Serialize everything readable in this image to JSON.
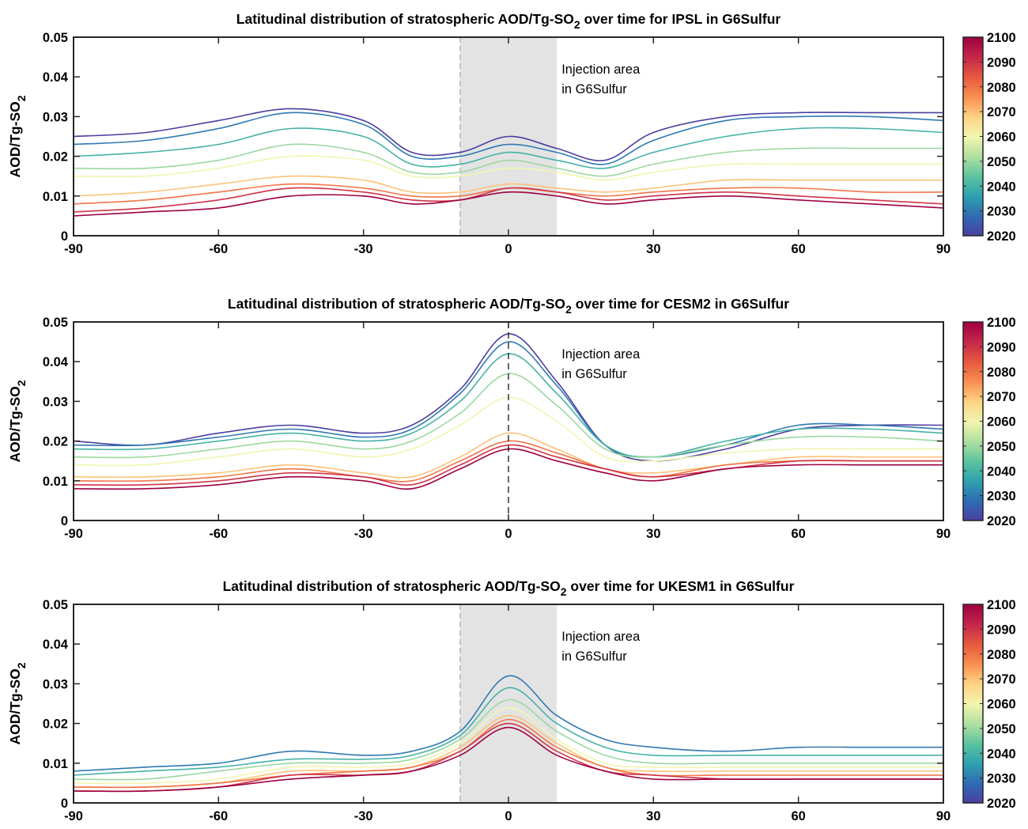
{
  "chart_data": [
    {
      "type": "line",
      "model": "IPSL",
      "title": "Latitudinal distribution of stratospheric AOD/Tg-SO",
      "title_sub": "2",
      "title_tail": " over time for IPSL in G6Sulfur",
      "ylabel": "AOD/Tg-SO",
      "ylabel_sub": "2",
      "annotation": [
        "Injection area",
        "in G6Sulfur"
      ],
      "injection_band": [
        -10,
        10
      ],
      "dashed_center": false,
      "xlim": [
        -90,
        90
      ],
      "ylim": [
        0,
        0.05
      ],
      "xticks": [
        "-90",
        "-60",
        "-30",
        "0",
        "30",
        "60",
        "90"
      ],
      "yticks": [
        "0",
        "0.01",
        "0.02",
        "0.03",
        "0.04",
        "0.05"
      ],
      "x_lat": [
        -90,
        -75,
        -60,
        -45,
        -30,
        -20,
        -10,
        0,
        10,
        20,
        30,
        45,
        60,
        75,
        90
      ],
      "series": [
        {
          "year": 2020,
          "values": [
            0.025,
            0.026,
            0.029,
            0.032,
            0.029,
            0.021,
            0.021,
            0.025,
            0.022,
            0.019,
            0.026,
            0.03,
            0.031,
            0.031,
            0.031
          ]
        },
        {
          "year": 2030,
          "values": [
            0.023,
            0.024,
            0.027,
            0.031,
            0.028,
            0.02,
            0.02,
            0.023,
            0.021,
            0.018,
            0.024,
            0.029,
            0.03,
            0.03,
            0.029
          ]
        },
        {
          "year": 2040,
          "values": [
            0.02,
            0.021,
            0.023,
            0.027,
            0.025,
            0.018,
            0.018,
            0.021,
            0.019,
            0.017,
            0.021,
            0.025,
            0.027,
            0.027,
            0.026
          ]
        },
        {
          "year": 2050,
          "values": [
            0.017,
            0.017,
            0.019,
            0.023,
            0.021,
            0.016,
            0.016,
            0.019,
            0.017,
            0.015,
            0.018,
            0.021,
            0.022,
            0.022,
            0.022
          ]
        },
        {
          "year": 2060,
          "values": [
            0.015,
            0.015,
            0.017,
            0.02,
            0.019,
            0.015,
            0.015,
            0.017,
            0.016,
            0.014,
            0.016,
            0.018,
            0.018,
            0.018,
            0.018
          ]
        },
        {
          "year": 2070,
          "values": [
            0.01,
            0.011,
            0.013,
            0.015,
            0.014,
            0.011,
            0.011,
            0.013,
            0.012,
            0.011,
            0.012,
            0.014,
            0.014,
            0.014,
            0.014
          ]
        },
        {
          "year": 2080,
          "values": [
            0.008,
            0.009,
            0.011,
            0.013,
            0.012,
            0.01,
            0.01,
            0.012,
            0.011,
            0.01,
            0.011,
            0.012,
            0.012,
            0.011,
            0.011
          ]
        },
        {
          "year": 2090,
          "values": [
            0.006,
            0.007,
            0.009,
            0.012,
            0.011,
            0.009,
            0.009,
            0.012,
            0.011,
            0.009,
            0.01,
            0.011,
            0.01,
            0.009,
            0.008
          ]
        },
        {
          "year": 2100,
          "values": [
            0.005,
            0.006,
            0.007,
            0.01,
            0.01,
            0.008,
            0.009,
            0.011,
            0.01,
            0.008,
            0.009,
            0.01,
            0.009,
            0.008,
            0.007
          ]
        }
      ]
    },
    {
      "type": "line",
      "model": "CESM2",
      "title": "Latitudinal distribution of stratospheric AOD/Tg-SO",
      "title_sub": "2",
      "title_tail": " over time for CESM2 in G6Sulfur",
      "ylabel": "AOD/Tg-SO",
      "ylabel_sub": "2",
      "annotation": [
        "Injection area",
        "in G6Sulfur"
      ],
      "injection_band": null,
      "dashed_center": true,
      "xlim": [
        -90,
        90
      ],
      "ylim": [
        0,
        0.05
      ],
      "xticks": [
        "-90",
        "-60",
        "-30",
        "0",
        "30",
        "60",
        "90"
      ],
      "yticks": [
        "0",
        "0.01",
        "0.02",
        "0.03",
        "0.04",
        "0.05"
      ],
      "x_lat": [
        -90,
        -75,
        -60,
        -45,
        -30,
        -20,
        -10,
        0,
        10,
        20,
        30,
        45,
        60,
        75,
        90
      ],
      "series": [
        {
          "year": 2020,
          "values": [
            0.02,
            0.019,
            0.022,
            0.024,
            0.022,
            0.024,
            0.033,
            0.047,
            0.035,
            0.019,
            0.015,
            0.018,
            0.023,
            0.024,
            0.024
          ]
        },
        {
          "year": 2030,
          "values": [
            0.019,
            0.019,
            0.021,
            0.023,
            0.021,
            0.023,
            0.032,
            0.045,
            0.034,
            0.019,
            0.016,
            0.019,
            0.024,
            0.024,
            0.023
          ]
        },
        {
          "year": 2040,
          "values": [
            0.018,
            0.018,
            0.02,
            0.022,
            0.02,
            0.022,
            0.03,
            0.042,
            0.032,
            0.019,
            0.016,
            0.02,
            0.023,
            0.023,
            0.022
          ]
        },
        {
          "year": 2050,
          "values": [
            0.016,
            0.016,
            0.018,
            0.02,
            0.018,
            0.02,
            0.027,
            0.037,
            0.029,
            0.018,
            0.016,
            0.019,
            0.021,
            0.021,
            0.02
          ]
        },
        {
          "year": 2060,
          "values": [
            0.014,
            0.014,
            0.016,
            0.018,
            0.016,
            0.018,
            0.024,
            0.031,
            0.025,
            0.016,
            0.015,
            0.017,
            0.018,
            0.018,
            0.018
          ]
        },
        {
          "year": 2070,
          "values": [
            0.011,
            0.011,
            0.012,
            0.014,
            0.012,
            0.011,
            0.016,
            0.022,
            0.018,
            0.013,
            0.012,
            0.014,
            0.016,
            0.016,
            0.016
          ]
        },
        {
          "year": 2080,
          "values": [
            0.01,
            0.01,
            0.011,
            0.013,
            0.011,
            0.01,
            0.015,
            0.02,
            0.017,
            0.013,
            0.011,
            0.014,
            0.015,
            0.015,
            0.015
          ]
        },
        {
          "year": 2090,
          "values": [
            0.009,
            0.009,
            0.01,
            0.012,
            0.011,
            0.009,
            0.014,
            0.019,
            0.016,
            0.013,
            0.011,
            0.013,
            0.015,
            0.015,
            0.015
          ]
        },
        {
          "year": 2100,
          "values": [
            0.008,
            0.008,
            0.009,
            0.011,
            0.01,
            0.008,
            0.013,
            0.018,
            0.015,
            0.012,
            0.01,
            0.013,
            0.014,
            0.014,
            0.014
          ]
        }
      ]
    },
    {
      "type": "line",
      "model": "UKESM1",
      "title": "Latitudinal distribution of stratospheric AOD/Tg-SO",
      "title_sub": "2",
      "title_tail": " over time for UKESM1 in G6Sulfur",
      "ylabel": "AOD/Tg-SO",
      "ylabel_sub": "2",
      "annotation": [
        "Injection area",
        "in G6Sulfur"
      ],
      "injection_band": [
        -10,
        10
      ],
      "dashed_center": false,
      "xlim": [
        -90,
        90
      ],
      "ylim": [
        0,
        0.05
      ],
      "xticks": [
        "-90",
        "-60",
        "-30",
        "0",
        "30",
        "60",
        "90"
      ],
      "yticks": [
        "0",
        "0.01",
        "0.02",
        "0.03",
        "0.04",
        "0.05"
      ],
      "x_lat": [
        -90,
        -75,
        -60,
        -45,
        -30,
        -20,
        -10,
        0,
        10,
        20,
        30,
        45,
        60,
        75,
        90
      ],
      "series": [
        {
          "year": 2030,
          "values": [
            0.008,
            0.009,
            0.01,
            0.013,
            0.012,
            0.013,
            0.018,
            0.032,
            0.022,
            0.016,
            0.014,
            0.013,
            0.014,
            0.014,
            0.014
          ]
        },
        {
          "year": 2040,
          "values": [
            0.007,
            0.008,
            0.009,
            0.011,
            0.011,
            0.012,
            0.017,
            0.029,
            0.02,
            0.014,
            0.012,
            0.012,
            0.012,
            0.012,
            0.012
          ]
        },
        {
          "year": 2050,
          "values": [
            0.006,
            0.006,
            0.008,
            0.01,
            0.01,
            0.011,
            0.016,
            0.026,
            0.018,
            0.012,
            0.01,
            0.01,
            0.01,
            0.01,
            0.01
          ]
        },
        {
          "year": 2060,
          "values": [
            0.005,
            0.005,
            0.006,
            0.009,
            0.009,
            0.01,
            0.015,
            0.024,
            0.016,
            0.01,
            0.009,
            0.009,
            0.009,
            0.009,
            0.009
          ]
        },
        {
          "year": 2070,
          "values": [
            0.004,
            0.004,
            0.005,
            0.008,
            0.008,
            0.009,
            0.014,
            0.022,
            0.015,
            0.009,
            0.008,
            0.008,
            0.008,
            0.008,
            0.008
          ]
        },
        {
          "year": 2080,
          "values": [
            0.004,
            0.004,
            0.005,
            0.007,
            0.008,
            0.009,
            0.013,
            0.021,
            0.014,
            0.009,
            0.007,
            0.007,
            0.007,
            0.007,
            0.007
          ]
        },
        {
          "year": 2090,
          "values": [
            0.003,
            0.003,
            0.004,
            0.007,
            0.007,
            0.008,
            0.013,
            0.02,
            0.013,
            0.008,
            0.007,
            0.006,
            0.006,
            0.006,
            0.006
          ]
        },
        {
          "year": 2100,
          "values": [
            0.003,
            0.003,
            0.004,
            0.006,
            0.007,
            0.008,
            0.012,
            0.019,
            0.012,
            0.008,
            0.006,
            0.006,
            0.006,
            0.006,
            0.006
          ]
        }
      ]
    }
  ],
  "colorbar": {
    "min": 2020,
    "max": 2100,
    "ticks": [
      "2020",
      "2030",
      "2040",
      "2050",
      "2060",
      "2070",
      "2080",
      "2090",
      "2100"
    ],
    "colormap": [
      "#4a3fa0",
      "#2f6cb2",
      "#2ea0b0",
      "#5dc39e",
      "#b0dfa0",
      "#f2f5b0",
      "#fed384",
      "#fa8f51",
      "#e65a3f",
      "#c6284b",
      "#9e0142"
    ]
  },
  "colors": {
    "injection_band": "#e3e3e3",
    "axis": "#262626"
  }
}
